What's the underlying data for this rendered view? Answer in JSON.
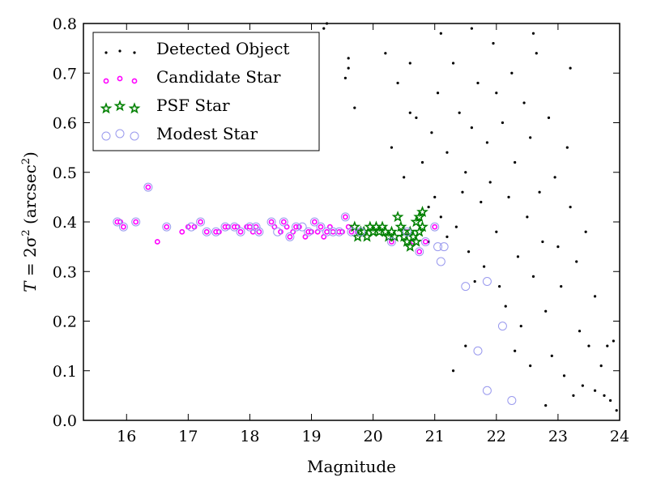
{
  "chart_data": {
    "type": "scatter",
    "title": "",
    "xlabel": "Magnitude",
    "ylabel_parts": {
      "prefix": "T",
      "equation": " = 2σ",
      "sup": "2",
      "unit_open": " (arcsec",
      "unit_sup": "2",
      "unit_close": ")"
    },
    "xlim": [
      15.3,
      24.0
    ],
    "ylim": [
      0.0,
      0.8
    ],
    "xticks": [
      16,
      17,
      18,
      19,
      20,
      21,
      22,
      23,
      24
    ],
    "xtick_labels": [
      "16",
      "17",
      "18",
      "19",
      "20",
      "21",
      "22",
      "23",
      "24"
    ],
    "yticks": [
      0.0,
      0.1,
      0.2,
      0.3,
      0.4,
      0.5,
      0.6,
      0.7,
      0.8
    ],
    "ytick_labels": [
      "0.0",
      "0.1",
      "0.2",
      "0.3",
      "0.4",
      "0.5",
      "0.6",
      "0.7",
      "0.8"
    ],
    "grid": false,
    "legend_position": "top-left",
    "legend": [
      "Detected Object",
      "Candidate Star",
      "PSF Star",
      "Modest Star"
    ],
    "colors": {
      "detected": "#000000",
      "candidate": "#ff00ff",
      "psf": "#008000",
      "modest": "#9999ee"
    },
    "series": [
      {
        "key": "detected",
        "marker": "dot",
        "points": [
          [
            19.2,
            0.79
          ],
          [
            19.25,
            0.8
          ],
          [
            19.6,
            0.73
          ],
          [
            19.6,
            0.71
          ],
          [
            19.55,
            0.69
          ],
          [
            19.7,
            0.63
          ],
          [
            20.2,
            0.74
          ],
          [
            20.3,
            0.55
          ],
          [
            20.5,
            0.49
          ],
          [
            20.6,
            0.62
          ],
          [
            20.7,
            0.61
          ],
          [
            20.8,
            0.52
          ],
          [
            20.9,
            0.43
          ],
          [
            20.95,
            0.58
          ],
          [
            21.0,
            0.45
          ],
          [
            21.05,
            0.66
          ],
          [
            21.1,
            0.41
          ],
          [
            21.2,
            0.54
          ],
          [
            21.3,
            0.72
          ],
          [
            21.35,
            0.39
          ],
          [
            21.4,
            0.62
          ],
          [
            21.5,
            0.5
          ],
          [
            21.55,
            0.34
          ],
          [
            21.6,
            0.59
          ],
          [
            21.65,
            0.28
          ],
          [
            21.7,
            0.68
          ],
          [
            21.75,
            0.44
          ],
          [
            21.8,
            0.31
          ],
          [
            21.85,
            0.56
          ],
          [
            21.9,
            0.48
          ],
          [
            21.95,
            0.76
          ],
          [
            22.0,
            0.38
          ],
          [
            22.05,
            0.27
          ],
          [
            22.1,
            0.6
          ],
          [
            22.15,
            0.23
          ],
          [
            22.2,
            0.45
          ],
          [
            22.25,
            0.7
          ],
          [
            22.3,
            0.52
          ],
          [
            22.35,
            0.33
          ],
          [
            22.4,
            0.19
          ],
          [
            22.45,
            0.64
          ],
          [
            22.5,
            0.41
          ],
          [
            22.55,
            0.57
          ],
          [
            22.6,
            0.29
          ],
          [
            22.65,
            0.74
          ],
          [
            22.7,
            0.46
          ],
          [
            22.75,
            0.36
          ],
          [
            22.8,
            0.22
          ],
          [
            22.85,
            0.61
          ],
          [
            22.9,
            0.13
          ],
          [
            22.95,
            0.49
          ],
          [
            23.0,
            0.35
          ],
          [
            23.05,
            0.27
          ],
          [
            23.1,
            0.09
          ],
          [
            23.15,
            0.55
          ],
          [
            23.2,
            0.43
          ],
          [
            23.3,
            0.32
          ],
          [
            23.35,
            0.18
          ],
          [
            23.4,
            0.07
          ],
          [
            23.45,
            0.38
          ],
          [
            23.5,
            0.15
          ],
          [
            23.6,
            0.25
          ],
          [
            23.7,
            0.11
          ],
          [
            23.75,
            0.05
          ],
          [
            23.8,
            0.15
          ],
          [
            23.85,
            0.04
          ],
          [
            23.9,
            0.16
          ],
          [
            23.95,
            0.02
          ],
          [
            21.3,
            0.1
          ],
          [
            21.5,
            0.15
          ],
          [
            22.8,
            0.03
          ],
          [
            23.6,
            0.06
          ],
          [
            20.4,
            0.68
          ],
          [
            20.6,
            0.72
          ],
          [
            21.1,
            0.78
          ],
          [
            21.6,
            0.79
          ],
          [
            22.0,
            0.66
          ],
          [
            22.6,
            0.78
          ],
          [
            23.2,
            0.71
          ],
          [
            20.9,
            0.36
          ],
          [
            21.2,
            0.37
          ],
          [
            21.45,
            0.46
          ],
          [
            22.3,
            0.14
          ],
          [
            22.55,
            0.11
          ],
          [
            23.25,
            0.05
          ]
        ]
      },
      {
        "key": "candidate",
        "marker": "small-circle",
        "points": [
          [
            15.85,
            0.4
          ],
          [
            15.9,
            0.4
          ],
          [
            15.95,
            0.39
          ],
          [
            16.15,
            0.4
          ],
          [
            16.35,
            0.47
          ],
          [
            16.5,
            0.36
          ],
          [
            16.65,
            0.39
          ],
          [
            16.9,
            0.38
          ],
          [
            17.0,
            0.39
          ],
          [
            17.1,
            0.39
          ],
          [
            17.2,
            0.4
          ],
          [
            17.3,
            0.38
          ],
          [
            17.45,
            0.38
          ],
          [
            17.5,
            0.38
          ],
          [
            17.6,
            0.39
          ],
          [
            17.65,
            0.39
          ],
          [
            17.75,
            0.39
          ],
          [
            17.8,
            0.39
          ],
          [
            17.85,
            0.38
          ],
          [
            17.95,
            0.39
          ],
          [
            18.0,
            0.39
          ],
          [
            18.05,
            0.38
          ],
          [
            18.1,
            0.39
          ],
          [
            18.15,
            0.38
          ],
          [
            18.35,
            0.4
          ],
          [
            18.4,
            0.39
          ],
          [
            18.5,
            0.38
          ],
          [
            18.55,
            0.4
          ],
          [
            18.6,
            0.39
          ],
          [
            18.65,
            0.37
          ],
          [
            18.7,
            0.38
          ],
          [
            18.75,
            0.39
          ],
          [
            18.8,
            0.39
          ],
          [
            18.9,
            0.37
          ],
          [
            18.95,
            0.38
          ],
          [
            19.0,
            0.38
          ],
          [
            19.05,
            0.4
          ],
          [
            19.1,
            0.38
          ],
          [
            19.15,
            0.39
          ],
          [
            19.2,
            0.37
          ],
          [
            19.25,
            0.38
          ],
          [
            19.3,
            0.39
          ],
          [
            19.35,
            0.38
          ],
          [
            19.45,
            0.38
          ],
          [
            19.5,
            0.38
          ],
          [
            19.55,
            0.41
          ],
          [
            19.6,
            0.39
          ],
          [
            19.65,
            0.38
          ],
          [
            19.75,
            0.38
          ],
          [
            19.85,
            0.38
          ],
          [
            20.3,
            0.36
          ],
          [
            20.55,
            0.38
          ],
          [
            20.65,
            0.36
          ],
          [
            20.75,
            0.34
          ],
          [
            20.85,
            0.36
          ],
          [
            21.0,
            0.39
          ]
        ]
      },
      {
        "key": "psf",
        "marker": "star",
        "points": [
          [
            19.7,
            0.39
          ],
          [
            19.75,
            0.37
          ],
          [
            19.8,
            0.38
          ],
          [
            19.85,
            0.38
          ],
          [
            19.9,
            0.37
          ],
          [
            19.95,
            0.39
          ],
          [
            20.0,
            0.38
          ],
          [
            20.05,
            0.39
          ],
          [
            20.1,
            0.38
          ],
          [
            20.15,
            0.39
          ],
          [
            20.2,
            0.38
          ],
          [
            20.25,
            0.37
          ],
          [
            20.3,
            0.38
          ],
          [
            20.35,
            0.37
          ],
          [
            20.4,
            0.41
          ],
          [
            20.45,
            0.39
          ],
          [
            20.5,
            0.37
          ],
          [
            20.55,
            0.36
          ],
          [
            20.6,
            0.38
          ],
          [
            20.65,
            0.37
          ],
          [
            20.7,
            0.4
          ],
          [
            20.75,
            0.41
          ],
          [
            20.8,
            0.42
          ],
          [
            20.7,
            0.36
          ],
          [
            20.6,
            0.35
          ],
          [
            20.8,
            0.39
          ],
          [
            20.5,
            0.38
          ],
          [
            20.75,
            0.38
          ]
        ]
      },
      {
        "key": "modest",
        "marker": "ring",
        "points": [
          [
            15.85,
            0.4
          ],
          [
            15.95,
            0.39
          ],
          [
            16.15,
            0.4
          ],
          [
            16.35,
            0.47
          ],
          [
            16.65,
            0.39
          ],
          [
            17.05,
            0.39
          ],
          [
            17.2,
            0.4
          ],
          [
            17.3,
            0.38
          ],
          [
            17.45,
            0.38
          ],
          [
            17.6,
            0.39
          ],
          [
            17.75,
            0.39
          ],
          [
            17.85,
            0.38
          ],
          [
            18.0,
            0.39
          ],
          [
            18.1,
            0.39
          ],
          [
            18.15,
            0.38
          ],
          [
            18.35,
            0.4
          ],
          [
            18.45,
            0.38
          ],
          [
            18.55,
            0.4
          ],
          [
            18.65,
            0.37
          ],
          [
            18.75,
            0.39
          ],
          [
            18.85,
            0.39
          ],
          [
            18.95,
            0.38
          ],
          [
            19.05,
            0.4
          ],
          [
            19.15,
            0.39
          ],
          [
            19.25,
            0.38
          ],
          [
            19.35,
            0.38
          ],
          [
            19.45,
            0.38
          ],
          [
            19.55,
            0.41
          ],
          [
            19.65,
            0.38
          ],
          [
            19.8,
            0.38
          ],
          [
            20.3,
            0.36
          ],
          [
            20.55,
            0.38
          ],
          [
            20.75,
            0.34
          ],
          [
            20.85,
            0.36
          ],
          [
            21.0,
            0.39
          ],
          [
            21.05,
            0.35
          ],
          [
            21.15,
            0.35
          ],
          [
            21.1,
            0.32
          ],
          [
            21.5,
            0.27
          ],
          [
            21.85,
            0.28
          ],
          [
            21.7,
            0.14
          ],
          [
            22.1,
            0.19
          ],
          [
            21.85,
            0.06
          ],
          [
            22.25,
            0.04
          ]
        ]
      }
    ]
  }
}
